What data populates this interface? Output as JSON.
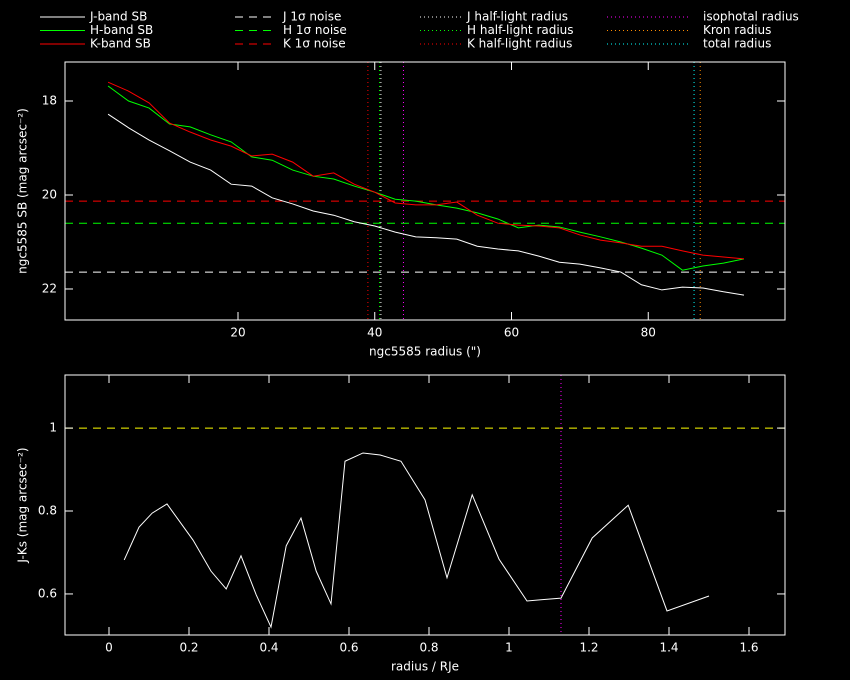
{
  "chart_data": [
    {
      "type": "line",
      "xlabel": "ngc5585 radius (\")",
      "ylabel": "ngc5585 SB (mag arcsec⁻²)",
      "xlim": [
        -5.3,
        100
      ],
      "ylim": [
        22.66,
        17.17
      ],
      "xticks": [
        20,
        40,
        60,
        80
      ],
      "yticks": [
        18,
        20,
        22
      ],
      "x": [
        1,
        4,
        7,
        10,
        13,
        16,
        19,
        22,
        25,
        28,
        31,
        34,
        37,
        40,
        43,
        46,
        49,
        52,
        55,
        58,
        61,
        64,
        67,
        70,
        73,
        76,
        79,
        82,
        85,
        88,
        91,
        94
      ],
      "series": [
        {
          "name": "J-band SB",
          "color": "#ffffff",
          "values": [
            18.28,
            18.57,
            18.83,
            19.06,
            19.3,
            19.47,
            19.77,
            19.81,
            20.06,
            20.19,
            20.34,
            20.43,
            20.57,
            20.66,
            20.79,
            20.89,
            20.91,
            20.94,
            21.09,
            21.15,
            21.19,
            21.3,
            21.43,
            21.47,
            21.55,
            21.64,
            21.91,
            22.02,
            21.96,
            21.98,
            22.06,
            22.13
          ]
        },
        {
          "name": "H-band SB",
          "color": "#00ff00",
          "values": [
            17.68,
            18.0,
            18.15,
            18.49,
            18.55,
            18.72,
            18.87,
            19.19,
            19.26,
            19.47,
            19.6,
            19.66,
            19.81,
            19.94,
            20.09,
            20.13,
            20.21,
            20.28,
            20.38,
            20.51,
            20.7,
            20.64,
            20.68,
            20.79,
            20.89,
            21.0,
            21.13,
            21.28,
            21.6,
            21.51,
            21.45,
            21.36
          ]
        },
        {
          "name": "K-band SB",
          "color": "#ff0000",
          "values": [
            17.6,
            17.79,
            18.04,
            18.47,
            18.66,
            18.83,
            18.96,
            19.17,
            19.13,
            19.3,
            19.6,
            19.53,
            19.77,
            19.94,
            20.17,
            20.21,
            20.21,
            20.15,
            20.43,
            20.6,
            20.64,
            20.66,
            20.7,
            20.85,
            20.96,
            21.02,
            21.09,
            21.09,
            21.19,
            21.28,
            21.32,
            21.36
          ]
        }
      ],
      "hlines": [
        {
          "name": "J 1σ noise",
          "color": "#ffffff",
          "value": 21.64
        },
        {
          "name": "H 1σ noise",
          "color": "#00ff00",
          "value": 20.6
        },
        {
          "name": "K 1σ noise",
          "color": "#ff0000",
          "value": 20.13
        }
      ],
      "vlines": [
        {
          "name": "J half-light radius",
          "color": "#ffffff",
          "value": 40.9
        },
        {
          "name": "H half-light radius",
          "color": "#00ff00",
          "value": 40.7
        },
        {
          "name": "K half-light radius",
          "color": "#ff0000",
          "value": 39.0
        },
        {
          "name": "isophotal radius",
          "color": "#ff00ff",
          "value": 44.2
        },
        {
          "name": "Kron radius",
          "color": "#ff8c00",
          "value": 87.6
        },
        {
          "name": "total radius",
          "color": "#00ffff",
          "value": 86.7
        }
      ]
    },
    {
      "type": "line",
      "xlabel": "radius / RJe",
      "ylabel": "J-Ks (mag arcsec⁻²)",
      "xlim": [
        -0.11,
        1.69
      ],
      "ylim": [
        0.501,
        1.128
      ],
      "xticks": [
        0,
        0.2,
        0.4,
        0.6,
        0.8,
        1,
        1.2,
        1.4,
        1.6
      ],
      "yticks": [
        0.6,
        0.8,
        1
      ],
      "x": [
        0.038,
        0.075,
        0.108,
        0.145,
        0.21,
        0.255,
        0.293,
        0.33,
        0.368,
        0.405,
        0.443,
        0.48,
        0.518,
        0.555,
        0.59,
        0.635,
        0.678,
        0.73,
        0.79,
        0.845,
        0.908,
        0.975,
        1.045,
        1.08,
        1.13,
        1.208,
        1.298,
        1.395,
        1.5
      ],
      "series": [
        {
          "color": "#ffffff",
          "values": [
            0.682,
            0.761,
            0.795,
            0.817,
            0.73,
            0.655,
            0.612,
            0.692,
            0.598,
            0.52,
            0.716,
            0.783,
            0.655,
            0.576,
            0.92,
            0.94,
            0.935,
            0.92,
            0.827,
            0.639,
            0.839,
            0.684,
            0.583,
            0.586,
            0.59,
            0.735,
            0.814,
            0.559,
            0.595
          ]
        }
      ],
      "hlines": [
        {
          "color": "#ffff00",
          "value": 1
        }
      ],
      "vlines": [
        {
          "color": "#ff00ff",
          "value": 1.13
        }
      ]
    }
  ]
}
